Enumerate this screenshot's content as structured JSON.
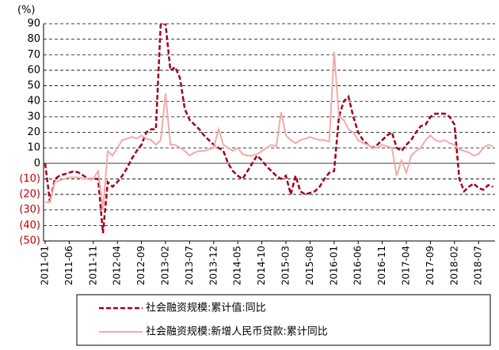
{
  "chart_data": {
    "type": "line",
    "y_label": "(%)",
    "categories": [
      "2011-01",
      null,
      null,
      null,
      null,
      "2011-06",
      null,
      null,
      null,
      null,
      "2011-11",
      null,
      null,
      null,
      null,
      "2012-04",
      null,
      null,
      null,
      null,
      "2012-09",
      null,
      null,
      null,
      null,
      "2013-02",
      null,
      null,
      null,
      null,
      "2013-07",
      null,
      null,
      null,
      null,
      "2013-12",
      null,
      null,
      null,
      null,
      "2014-05",
      null,
      null,
      null,
      null,
      "2014-10",
      null,
      null,
      null,
      null,
      "2015-03",
      null,
      null,
      null,
      null,
      "2015-08",
      null,
      null,
      null,
      null,
      "2016-01",
      null,
      null,
      null,
      null,
      "2016-06",
      null,
      null,
      null,
      null,
      "2016-11",
      null,
      null,
      null,
      null,
      "2017-04",
      null,
      null,
      null,
      null,
      "2017-09",
      null,
      null,
      null,
      null,
      "2018-02",
      null,
      null,
      null,
      null,
      "2018-07",
      null,
      null,
      null
    ],
    "series": [
      {
        "name": "社会融资规模:累计值:同比",
        "color": "#a0001e",
        "dash": true,
        "values": [
          0,
          -25,
          -10,
          -8,
          -7,
          -6,
          -5,
          -6,
          -8,
          -10,
          -10,
          -10,
          -45,
          -12,
          -15,
          -12,
          -8,
          -3,
          3,
          8,
          12,
          20,
          22,
          22,
          90,
          90,
          60,
          62,
          55,
          35,
          28,
          25,
          22,
          18,
          15,
          12,
          10,
          8,
          0,
          -5,
          -8,
          -10,
          -5,
          0,
          5,
          2,
          -2,
          -5,
          -8,
          -10,
          -8,
          -20,
          -8,
          -18,
          -20,
          -19,
          -18,
          -15,
          -10,
          -6,
          -5,
          30,
          40,
          43,
          30,
          20,
          15,
          12,
          10,
          12,
          15,
          18,
          20,
          10,
          8,
          12,
          15,
          20,
          24,
          25,
          30,
          32,
          32,
          32,
          30,
          25,
          -10,
          -18,
          -15,
          -13,
          -16,
          -17,
          -14,
          -15
        ]
      },
      {
        "name": "社会融资规模:新增人民币贷款:累计同比",
        "color": "#f2aaaa",
        "dash": false,
        "values": [
          -25,
          -25,
          -12,
          -11,
          -10,
          -9,
          -9,
          -9,
          -10,
          -10,
          -10,
          -5,
          -30,
          8,
          5,
          10,
          15,
          16,
          17,
          16,
          18,
          16,
          15,
          12,
          15,
          45,
          12,
          12,
          10,
          8,
          5,
          7,
          8,
          8,
          9,
          10,
          22,
          12,
          10,
          8,
          10,
          6,
          5,
          5,
          6,
          8,
          10,
          12,
          11,
          33,
          18,
          15,
          13,
          15,
          16,
          17,
          16,
          15,
          15,
          14,
          72,
          30,
          28,
          22,
          20,
          15,
          13,
          12,
          10,
          10,
          12,
          11,
          10,
          -8,
          2,
          -6,
          5,
          8,
          10,
          15,
          18,
          15,
          14,
          15,
          13,
          12,
          9,
          8,
          7,
          5,
          6,
          10,
          12,
          11
        ]
      }
    ],
    "ylim": [
      -50,
      90
    ],
    "yticks": [
      {
        "value": -50,
        "label": "(50)"
      },
      {
        "value": -40,
        "label": "(40)"
      },
      {
        "value": -30,
        "label": "(30)"
      },
      {
        "value": -20,
        "label": "(20)"
      },
      {
        "value": -10,
        "label": "(10)"
      },
      0,
      10,
      20,
      30,
      40,
      50,
      60,
      70,
      80,
      90
    ],
    "grid": true
  }
}
